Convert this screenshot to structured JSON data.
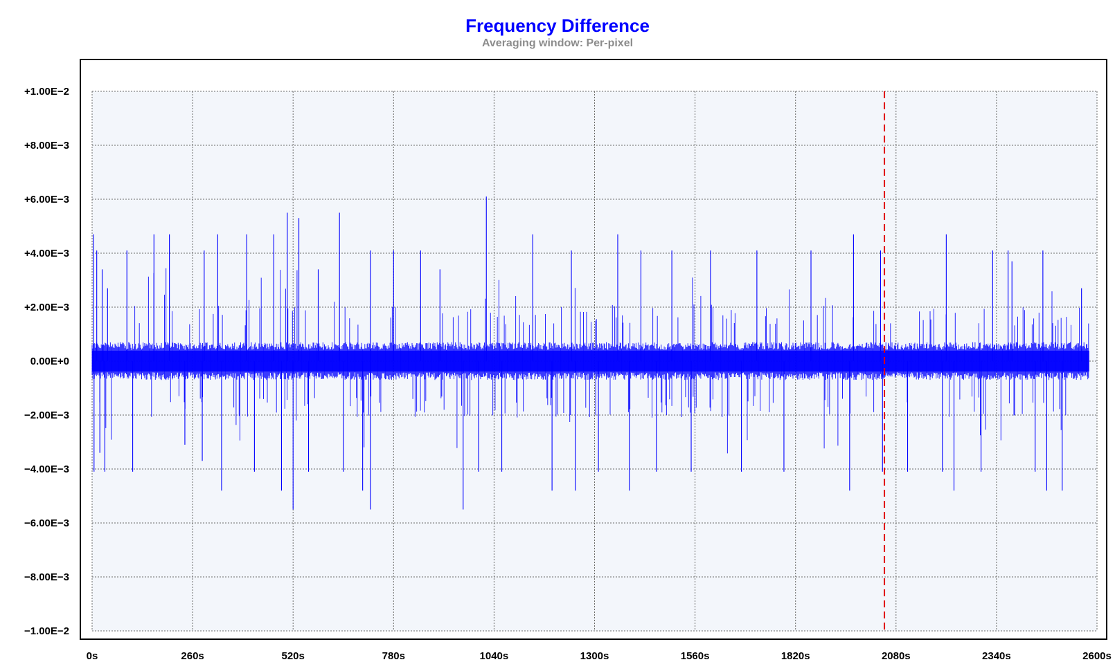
{
  "chart_data": {
    "type": "line",
    "title": "Frequency Difference",
    "subtitle": "Averaging window: Per-pixel",
    "xlabel": "",
    "ylabel": "",
    "xlim": [
      0,
      2600
    ],
    "ylim": [
      -0.01,
      0.01
    ],
    "x_unit": "s",
    "xticks": [
      "0s",
      "260s",
      "520s",
      "780s",
      "1040s",
      "1300s",
      "1560s",
      "1820s",
      "2080s",
      "2340s",
      "2600s"
    ],
    "yticks": [
      "+1.00E−2",
      "+8.00E−3",
      "+6.00E−3",
      "+4.00E−3",
      "+2.00E−3",
      "0.00E+0",
      "−2.00E−3",
      "−4.00E−3",
      "−6.00E−3",
      "−8.00E−3",
      "−1.00E−2"
    ],
    "grid": true,
    "marker_x": 2050,
    "marker_color": "#e00000",
    "series": [
      {
        "color": "#0000ff",
        "x_start": 0,
        "x_end": 2580,
        "baseline_band": [
          -0.0007,
          0.0007
        ],
        "spikes": [
          {
            "x": 3,
            "y": 0.0047
          },
          {
            "x": 5,
            "y": -0.0041
          },
          {
            "x": 12,
            "y": 0.0041
          },
          {
            "x": 20,
            "y": -0.0034
          },
          {
            "x": 26,
            "y": 0.0034
          },
          {
            "x": 33,
            "y": -0.0041
          },
          {
            "x": 40,
            "y": 0.0027
          },
          {
            "x": 90,
            "y": 0.0041
          },
          {
            "x": 105,
            "y": -0.0041
          },
          {
            "x": 160,
            "y": 0.0047
          },
          {
            "x": 200,
            "y": 0.0047
          },
          {
            "x": 240,
            "y": -0.0031
          },
          {
            "x": 285,
            "y": -0.0037
          },
          {
            "x": 290,
            "y": 0.0041
          },
          {
            "x": 325,
            "y": 0.0047
          },
          {
            "x": 335,
            "y": -0.0048
          },
          {
            "x": 400,
            "y": 0.0047
          },
          {
            "x": 420,
            "y": -0.0041
          },
          {
            "x": 470,
            "y": 0.0047
          },
          {
            "x": 490,
            "y": -0.0048
          },
          {
            "x": 505,
            "y": 0.0055
          },
          {
            "x": 520,
            "y": -0.0055
          },
          {
            "x": 535,
            "y": 0.0053
          },
          {
            "x": 560,
            "y": -0.0041
          },
          {
            "x": 585,
            "y": 0.0034
          },
          {
            "x": 640,
            "y": 0.0055
          },
          {
            "x": 650,
            "y": -0.0041
          },
          {
            "x": 700,
            "y": -0.0048
          },
          {
            "x": 720,
            "y": 0.0041
          },
          {
            "x": 720,
            "y": -0.0055
          },
          {
            "x": 780,
            "y": 0.0041
          },
          {
            "x": 850,
            "y": 0.0041
          },
          {
            "x": 900,
            "y": 0.0034
          },
          {
            "x": 960,
            "y": -0.0055
          },
          {
            "x": 1000,
            "y": -0.0041
          },
          {
            "x": 1020,
            "y": 0.0061
          },
          {
            "x": 1060,
            "y": -0.0041
          },
          {
            "x": 1140,
            "y": 0.0047
          },
          {
            "x": 1190,
            "y": -0.0048
          },
          {
            "x": 1240,
            "y": 0.0041
          },
          {
            "x": 1250,
            "y": -0.0048
          },
          {
            "x": 1310,
            "y": -0.0041
          },
          {
            "x": 1360,
            "y": 0.0047
          },
          {
            "x": 1390,
            "y": -0.0048
          },
          {
            "x": 1420,
            "y": 0.0041
          },
          {
            "x": 1460,
            "y": -0.0041
          },
          {
            "x": 1500,
            "y": 0.0041
          },
          {
            "x": 1550,
            "y": -0.0041
          },
          {
            "x": 1600,
            "y": 0.0041
          },
          {
            "x": 1680,
            "y": -0.0041
          },
          {
            "x": 1720,
            "y": 0.0041
          },
          {
            "x": 1790,
            "y": -0.0041
          },
          {
            "x": 1860,
            "y": 0.0041
          },
          {
            "x": 1960,
            "y": -0.0048
          },
          {
            "x": 1970,
            "y": 0.0047
          },
          {
            "x": 2040,
            "y": 0.0041
          },
          {
            "x": 2045,
            "y": -0.0041
          },
          {
            "x": 2110,
            "y": -0.0041
          },
          {
            "x": 2200,
            "y": -0.0041
          },
          {
            "x": 2210,
            "y": 0.0047
          },
          {
            "x": 2230,
            "y": -0.0048
          },
          {
            "x": 2300,
            "y": -0.0041
          },
          {
            "x": 2330,
            "y": 0.0041
          },
          {
            "x": 2370,
            "y": 0.0041
          },
          {
            "x": 2380,
            "y": 0.0037
          },
          {
            "x": 2440,
            "y": -0.0041
          },
          {
            "x": 2460,
            "y": 0.0041
          },
          {
            "x": 2470,
            "y": -0.0048
          },
          {
            "x": 2510,
            "y": -0.0048
          },
          {
            "x": 2560,
            "y": 0.0027
          }
        ]
      }
    ]
  }
}
